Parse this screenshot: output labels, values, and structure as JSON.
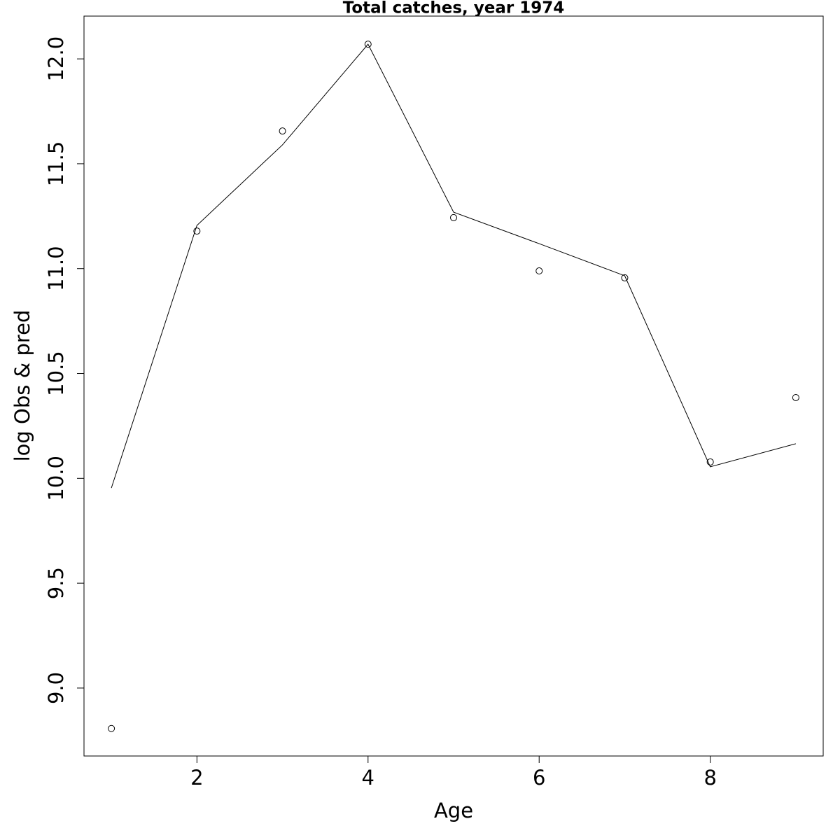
{
  "chart_data": {
    "type": "line",
    "title": "Total catches, year 1974",
    "x_label": "Age",
    "y_label": "log Obs & pred",
    "x": [
      1,
      2,
      3,
      4,
      5,
      6,
      7,
      8,
      9
    ],
    "series": [
      {
        "style": "points",
        "color": "#000000",
        "values": [
          8.807,
          11.179,
          11.656,
          12.07,
          11.243,
          10.989,
          10.956,
          10.078,
          10.385
        ]
      },
      {
        "style": "line",
        "color": "#000000",
        "values": [
          9.954,
          11.206,
          11.59,
          12.07,
          11.269,
          11.119,
          10.966,
          10.055,
          10.165
        ]
      }
    ],
    "xlim": [
      0.68,
      9.32
    ],
    "ylim": [
      8.676,
      12.204
    ],
    "xticks": [
      2,
      4,
      6,
      8
    ],
    "yticks": [
      {
        "value": 9,
        "label": "9.0"
      },
      {
        "value": 9.5,
        "label": "9.5"
      },
      {
        "value": 10,
        "label": "10.0"
      },
      {
        "value": 10.5,
        "label": "10.5"
      },
      {
        "value": 11,
        "label": "11.0"
      },
      {
        "value": 11.5,
        "label": "11.5"
      },
      {
        "value": 12,
        "label": "12.0"
      }
    ],
    "grid": false
  }
}
